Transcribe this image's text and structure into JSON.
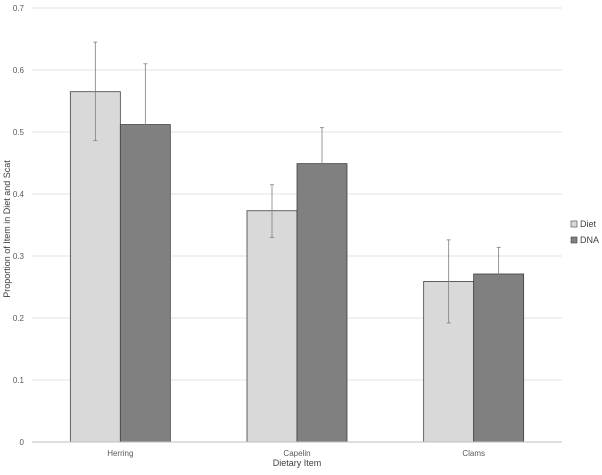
{
  "chart_data": {
    "type": "bar",
    "xlabel": "Dietary Item",
    "ylabel": "Proportion of Item in Diet and Scat",
    "categories": [
      "Herring",
      "Capelin",
      "Clams"
    ],
    "ylim": [
      0,
      0.7
    ],
    "yticks": [
      "0",
      "0.1",
      "0.2",
      "0.3",
      "0.4",
      "0.5",
      "0.6",
      "0.7"
    ],
    "grid": true,
    "legend_position": "right",
    "series": [
      {
        "name": "Diet",
        "color": "#d9d9d9",
        "values": [
          0.565,
          0.373,
          0.259
        ],
        "error_low": [
          0.486,
          0.33,
          0.192
        ],
        "error_high": [
          0.645,
          0.415,
          0.326
        ]
      },
      {
        "name": "DNA",
        "color": "#808080",
        "values": [
          0.512,
          0.449,
          0.271
        ],
        "error_low": [
          0.413,
          0.387,
          0.227
        ],
        "error_high": [
          0.61,
          0.507,
          0.314
        ]
      }
    ]
  }
}
